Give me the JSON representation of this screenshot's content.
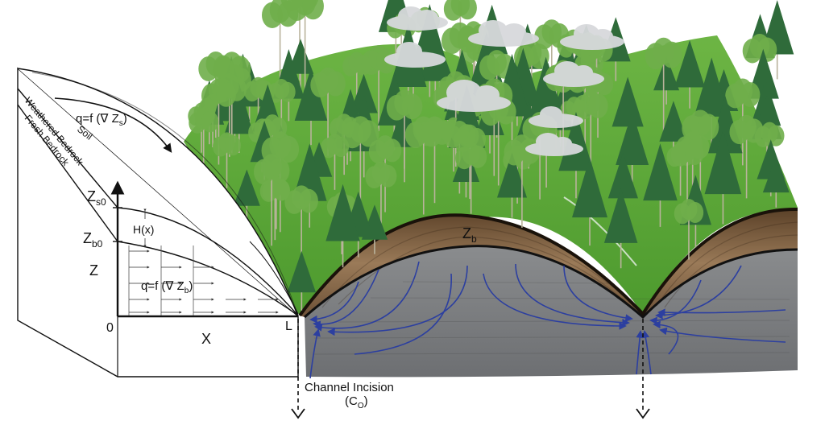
{
  "title": "",
  "labels": {
    "flux_surface": "q=f (∇ Z",
    "flux_surface_sub": "s",
    "flux_bedrock": "q=f (∇ Z",
    "flux_bedrock_sub": "b",
    "soil": "Soil",
    "weathered": "Weathered Bedrock",
    "fresh": "Fresh Bedrock",
    "zs0": "Z",
    "zs0_sub": "s0",
    "zb0": "Z",
    "zb0_sub": "b0",
    "z_axis": "Z",
    "h": "H(x)",
    "origin": "0",
    "x_axis": "X",
    "l": "L",
    "zb": "Z",
    "zb_sub": "b",
    "channel_line1": "Channel Incision",
    "channel_line2": "(C",
    "channel_sub": "O",
    "channel_close": ")"
  },
  "colors": {
    "grass": "#5fa83a",
    "grass_dark": "#3f7d26",
    "soil": "#8a6a4a",
    "soil_dark": "#4a3424",
    "bedrock": "#7b7d7f",
    "flow": "#2c3fa0",
    "tree_dark": "#2f6b3a",
    "tree_light": "#6fae4a",
    "trunk": "#b9b39c"
  },
  "icons": [
    "cloud-icon",
    "conifer-tree-icon",
    "deciduous-tree-icon",
    "arrow-down-icon"
  ]
}
